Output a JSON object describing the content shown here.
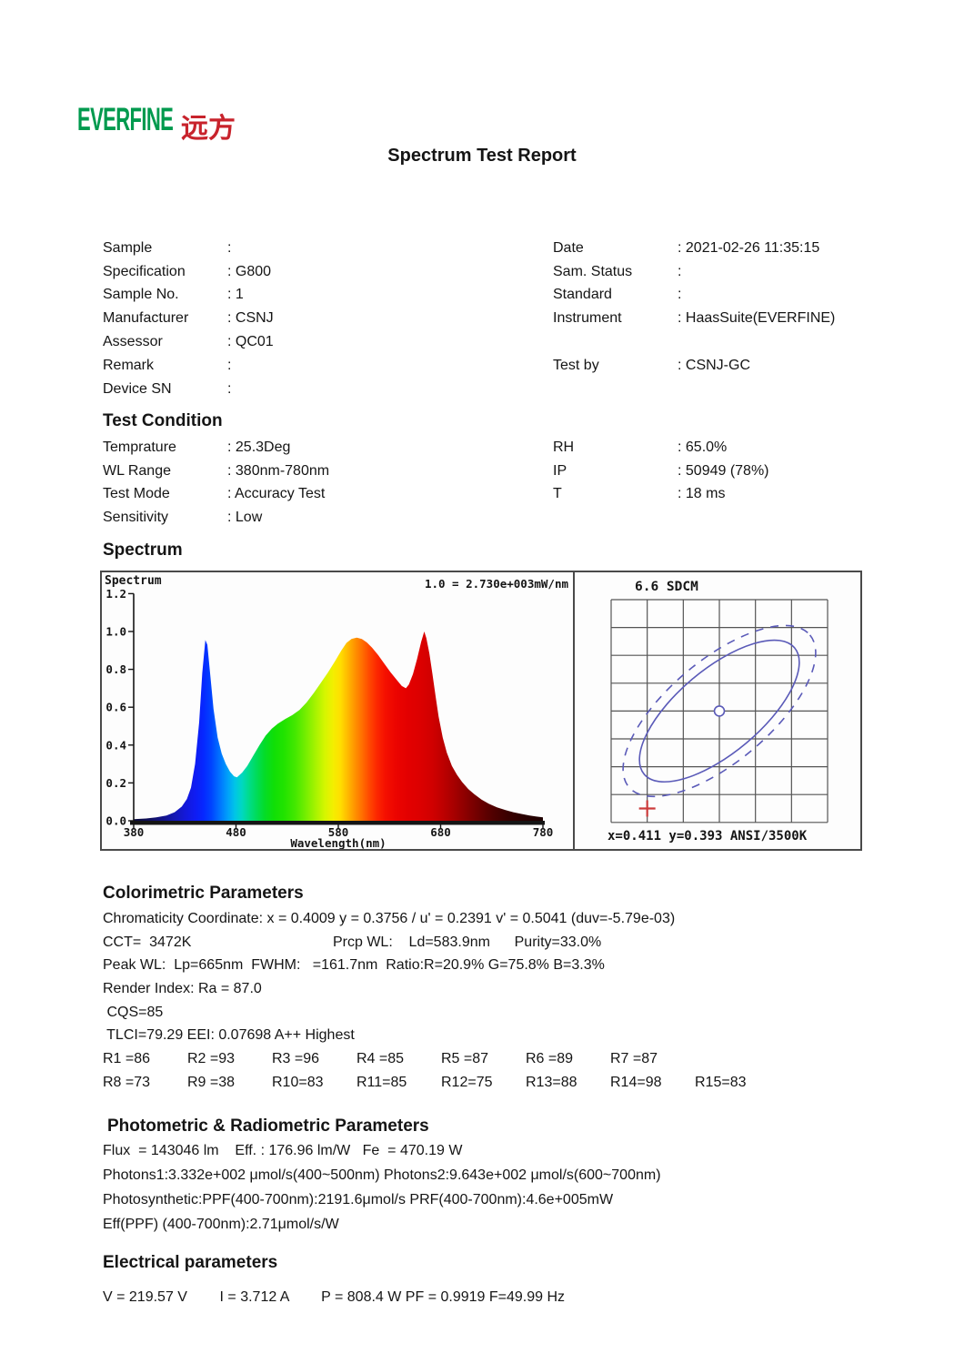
{
  "punct": {
    "colon": ":"
  },
  "logo": {
    "brand": "EVERFINE",
    "cjk": "远方",
    "brand_color": "#009a4e",
    "cjk_color": "#c8232c"
  },
  "title": "Spectrum Test Report",
  "sample_info": {
    "left": [
      {
        "label": "Sample",
        "value": ""
      },
      {
        "label": "Specification",
        "value": "G800"
      },
      {
        "label": "Sample No.",
        "value": "1"
      },
      {
        "label": "Manufacturer",
        "value": "CSNJ"
      },
      {
        "label": "Assessor",
        "value": "QC01"
      },
      {
        "label": "Remark",
        "value": ""
      },
      {
        "label": "Device SN",
        "value": ""
      }
    ],
    "right": [
      {
        "label": "Date",
        "value": "2021-02-26 11:35:15"
      },
      {
        "label": "Sam. Status",
        "value": ""
      },
      {
        "label": "Standard",
        "value": ""
      },
      {
        "label": "Instrument",
        "value": "HaasSuite(EVERFINE)"
      },
      {
        "label": "",
        "value": ""
      },
      {
        "label": "Test by",
        "value": "CSNJ-GC"
      },
      {
        "label": "",
        "value": ""
      }
    ]
  },
  "test_condition": {
    "heading": "Test Condition",
    "left": [
      {
        "label": "Temprature",
        "value": "25.3Deg"
      },
      {
        "label": "WL Range",
        "value": "380nm-780nm"
      },
      {
        "label": "Test Mode",
        "value": "Accuracy Test"
      },
      {
        "label": "Sensitivity",
        "value": "Low"
      }
    ],
    "right": [
      {
        "label": "RH",
        "value": "65.0%"
      },
      {
        "label": "IP",
        "value": "50949 (78%)"
      },
      {
        "label": "T",
        "value": "18 ms"
      },
      {
        "label": "",
        "value": ""
      }
    ]
  },
  "spectrum_heading": "Spectrum",
  "chart_data": [
    {
      "type": "area",
      "name": "spectral-power-distribution",
      "corner_label": "Spectrum",
      "scale_note": "1.0 = 2.730e+003mW/nm",
      "xlabel": "Wavelength(nm)",
      "x_ticks": [
        380,
        480,
        580,
        680,
        780
      ],
      "y_ticks": [
        "1.2",
        "1.0",
        "0.8",
        "0.6",
        "0.4",
        "0.2",
        "0.0"
      ],
      "xlim": [
        380,
        780
      ],
      "ylim": [
        0,
        1.2
      ],
      "points": [
        [
          380,
          0.008
        ],
        [
          392,
          0.012
        ],
        [
          402,
          0.018
        ],
        [
          412,
          0.028
        ],
        [
          420,
          0.045
        ],
        [
          427,
          0.075
        ],
        [
          432,
          0.115
        ],
        [
          436,
          0.175
        ],
        [
          440,
          0.3
        ],
        [
          444,
          0.52
        ],
        [
          447,
          0.78
        ],
        [
          450,
          0.955
        ],
        [
          452,
          0.93
        ],
        [
          455,
          0.76
        ],
        [
          458,
          0.59
        ],
        [
          462,
          0.44
        ],
        [
          466,
          0.355
        ],
        [
          470,
          0.3
        ],
        [
          474,
          0.26
        ],
        [
          478,
          0.235
        ],
        [
          481,
          0.23
        ],
        [
          486,
          0.255
        ],
        [
          491,
          0.29
        ],
        [
          497,
          0.345
        ],
        [
          503,
          0.4
        ],
        [
          509,
          0.45
        ],
        [
          515,
          0.487
        ],
        [
          521,
          0.513
        ],
        [
          528,
          0.537
        ],
        [
          535,
          0.558
        ],
        [
          542,
          0.585
        ],
        [
          549,
          0.625
        ],
        [
          556,
          0.675
        ],
        [
          563,
          0.73
        ],
        [
          570,
          0.785
        ],
        [
          577,
          0.845
        ],
        [
          583,
          0.9
        ],
        [
          588,
          0.94
        ],
        [
          593,
          0.961
        ],
        [
          598,
          0.968
        ],
        [
          603,
          0.96
        ],
        [
          608,
          0.942
        ],
        [
          613,
          0.915
        ],
        [
          619,
          0.875
        ],
        [
          625,
          0.83
        ],
        [
          631,
          0.785
        ],
        [
          637,
          0.745
        ],
        [
          642,
          0.712
        ],
        [
          646,
          0.7
        ],
        [
          649,
          0.72
        ],
        [
          653,
          0.775
        ],
        [
          657,
          0.855
        ],
        [
          661,
          0.945
        ],
        [
          664,
          1.0
        ],
        [
          666,
          0.965
        ],
        [
          669,
          0.885
        ],
        [
          672,
          0.775
        ],
        [
          675,
          0.66
        ],
        [
          678,
          0.55
        ],
        [
          682,
          0.44
        ],
        [
          686,
          0.36
        ],
        [
          691,
          0.29
        ],
        [
          696,
          0.243
        ],
        [
          701,
          0.205
        ],
        [
          707,
          0.168
        ],
        [
          713,
          0.14
        ],
        [
          720,
          0.112
        ],
        [
          727,
          0.09
        ],
        [
          735,
          0.071
        ],
        [
          743,
          0.057
        ],
        [
          751,
          0.045
        ],
        [
          759,
          0.036
        ],
        [
          767,
          0.028
        ],
        [
          773,
          0.023
        ],
        [
          780,
          0.018
        ]
      ],
      "gradient_stops": [
        [
          380,
          "#0b0b38"
        ],
        [
          396,
          "#10105e"
        ],
        [
          408,
          "#131388"
        ],
        [
          420,
          "#1518b4"
        ],
        [
          430,
          "#1418d8"
        ],
        [
          440,
          "#0f1cf2"
        ],
        [
          448,
          "#0627ff"
        ],
        [
          456,
          "#0044ff"
        ],
        [
          464,
          "#0072ff"
        ],
        [
          472,
          "#00a0fa"
        ],
        [
          479,
          "#00c6e6"
        ],
        [
          486,
          "#00d8c0"
        ],
        [
          493,
          "#00dc8a"
        ],
        [
          500,
          "#00dc5a"
        ],
        [
          508,
          "#04dc28"
        ],
        [
          517,
          "#10df06"
        ],
        [
          527,
          "#22e300"
        ],
        [
          538,
          "#44e800"
        ],
        [
          548,
          "#74ee00"
        ],
        [
          558,
          "#a8f300"
        ],
        [
          567,
          "#d6f600"
        ],
        [
          575,
          "#f4ee00"
        ],
        [
          582,
          "#ffdf00"
        ],
        [
          589,
          "#ffb900"
        ],
        [
          596,
          "#ff9400"
        ],
        [
          603,
          "#ff6f00"
        ],
        [
          610,
          "#ff4a00"
        ],
        [
          618,
          "#fc2600"
        ],
        [
          626,
          "#f51000"
        ],
        [
          636,
          "#ec0400"
        ],
        [
          648,
          "#e30000"
        ],
        [
          660,
          "#dc0000"
        ],
        [
          672,
          "#d00000"
        ],
        [
          683,
          "#bc0000"
        ],
        [
          694,
          "#a40000"
        ],
        [
          705,
          "#8a0000"
        ],
        [
          718,
          "#6c0000"
        ],
        [
          731,
          "#500000"
        ],
        [
          745,
          "#3a0000"
        ],
        [
          760,
          "#2a0000"
        ],
        [
          780,
          "#1d0000"
        ]
      ]
    },
    {
      "type": "chromaticity-sdcm",
      "title": "6.6 SDCM",
      "caption": "x=0.411 y=0.393 ANSI/3500K",
      "grid_cols": 6,
      "grid_rows": 8,
      "ellipse_angle_deg": -40,
      "solid_ellipse_rx": 108,
      "solid_ellipse_ry": 46,
      "dashed_ellipse_rx": 130,
      "dashed_ellipse_ry": 56,
      "cross_col": 1,
      "cross_row": 7.5,
      "ellipse_color": "#5a5ab8",
      "cross_color": "#cc3b3b",
      "grid_color": "#555555"
    }
  ],
  "colorimetric": {
    "heading": "Colorimetric Parameters",
    "lines": [
      "Chromaticity Coordinate: x = 0.4009 y = 0.3756 / u' = 0.2391 v' = 0.5041 (duv=-5.79e-03)",
      "CCT=  3472K                                   Prcp WL:    Ld=583.9nm      Purity=33.0%",
      "Peak WL:  Lp=665nm  FWHM:   =161.7nm  Ratio:R=20.9% G=75.8% B=3.3%",
      "Render Index: Ra = 87.0",
      " CQS=85",
      " TLCI=79.29 EEI: 0.07698 A++ Highest"
    ],
    "r_rows": [
      [
        "R1 =86",
        "R2 =93",
        "R3 =96",
        "R4 =85",
        "R5 =87",
        "R6 =89",
        "R7 =87"
      ],
      [
        "R8 =73",
        "R9 =38",
        "R10=83",
        "R11=85",
        "R12=75",
        "R13=88",
        "R14=98",
        "R15=83"
      ]
    ]
  },
  "photometric": {
    "heading": "Photometric & Radiometric Parameters",
    "lines": [
      "Flux  = 143046 lm    Eff. : 176.96 lm/W   Fe  = 470.19 W",
      "Photons1:3.332e+002 μmol/s(400~500nm) Photons2:9.643e+002 μmol/s(600~700nm)",
      "Photosynthetic:PPF(400-700nm):2191.6μmol/s PRF(400-700nm):4.6e+005mW",
      "Eff(PPF) (400-700nm):2.71μmol/s/W"
    ]
  },
  "electrical": {
    "heading": "Electrical parameters",
    "lines": [
      "V = 219.57 V        I = 3.712 A        P = 808.4 W PF = 0.9919 F=49.99 Hz"
    ]
  }
}
